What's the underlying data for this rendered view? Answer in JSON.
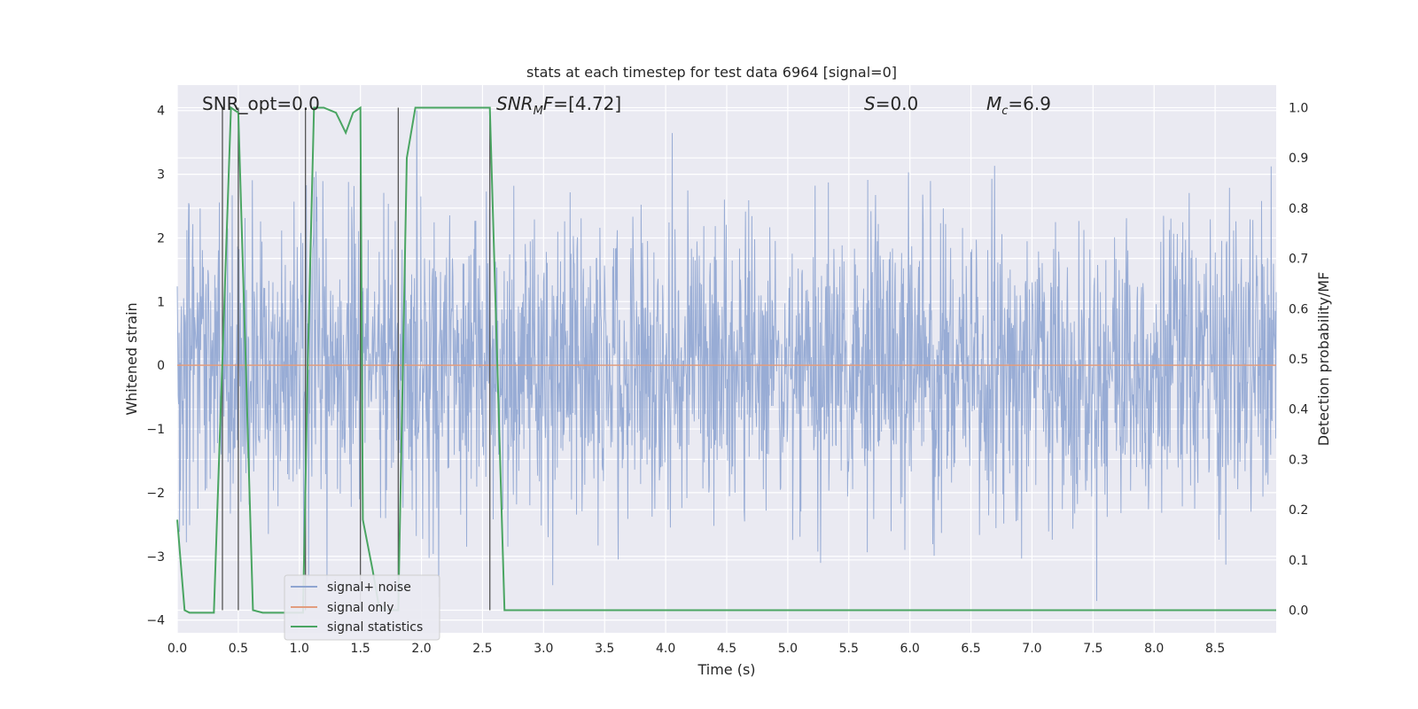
{
  "chart_data": {
    "type": "line",
    "title": "stats at each timestep for test data 6964 [signal=0]",
    "xlabel": "Time (s)",
    "ylabel": "Whitened strain",
    "ylabel_right": "Detection probability/MF",
    "xlim": [
      0.0,
      9.0
    ],
    "ylim_left": [
      -4.2,
      4.4
    ],
    "ylim_right": [
      -0.045,
      1.045
    ],
    "x_ticks": [
      "0.0",
      "0.5",
      "1.0",
      "1.5",
      "2.0",
      "2.5",
      "3.0",
      "3.5",
      "4.0",
      "4.5",
      "5.0",
      "5.5",
      "6.0",
      "6.5",
      "7.0",
      "7.5",
      "8.0",
      "8.5"
    ],
    "y_ticks_left": [
      "4",
      "3",
      "2",
      "1",
      "0",
      "−1",
      "−2",
      "−3",
      "−4"
    ],
    "y_ticks_right": [
      "1.0",
      "0.9",
      "0.8",
      "0.7",
      "0.6",
      "0.5",
      "0.4",
      "0.3",
      "0.2",
      "0.1",
      "0.0"
    ],
    "grid": true,
    "legend_position": "lower-left",
    "annotations": {
      "snr_opt": "SNR_opt=0.0",
      "snr_mf": "[4.72]",
      "s_value": "=0.0",
      "mc_value": "=6.9"
    },
    "vertical_markers": [
      0.37,
      0.5,
      1.05,
      1.5,
      1.81,
      2.56
    ],
    "series": [
      {
        "name": "signal+ noise",
        "color": "#8fa5d1",
        "axis": "left",
        "description_stats": {
          "std": 1.0,
          "upper_peak": 4.0,
          "lower_peak": -3.7
        }
      },
      {
        "name": "signal only",
        "color": "#e29d7e",
        "axis": "left",
        "values_constant": 0.0
      },
      {
        "name": "signal statistics",
        "color": "#4aa562",
        "axis": "right",
        "x": [
          0.0,
          0.06,
          0.1,
          0.16,
          0.3,
          0.37,
          0.44,
          0.5,
          0.56,
          0.62,
          0.7,
          0.8,
          0.9,
          1.03,
          1.07,
          1.12,
          1.2,
          1.3,
          1.38,
          1.44,
          1.5,
          1.52,
          1.6,
          1.65,
          1.72,
          1.81,
          1.88,
          1.95,
          2.0,
          2.1,
          2.3,
          2.5,
          2.56,
          2.62,
          2.68,
          2.75,
          3.0,
          4.0,
          5.0,
          6.0,
          7.0,
          8.0,
          9.0
        ],
        "values": [
          0.18,
          0.0,
          -0.005,
          -0.005,
          -0.005,
          0.5,
          1.0,
          0.99,
          0.5,
          0.0,
          -0.005,
          -0.005,
          -0.005,
          -0.005,
          0.5,
          1.0,
          1.0,
          0.99,
          0.95,
          0.99,
          1.0,
          0.18,
          0.08,
          0.01,
          0.0,
          0.0,
          0.9,
          1.0,
          1.0,
          1.0,
          1.0,
          1.0,
          1.0,
          0.5,
          0.0,
          0.0,
          0.0,
          0.0,
          0.0,
          0.0,
          0.0,
          0.0,
          0.0
        ]
      }
    ]
  }
}
